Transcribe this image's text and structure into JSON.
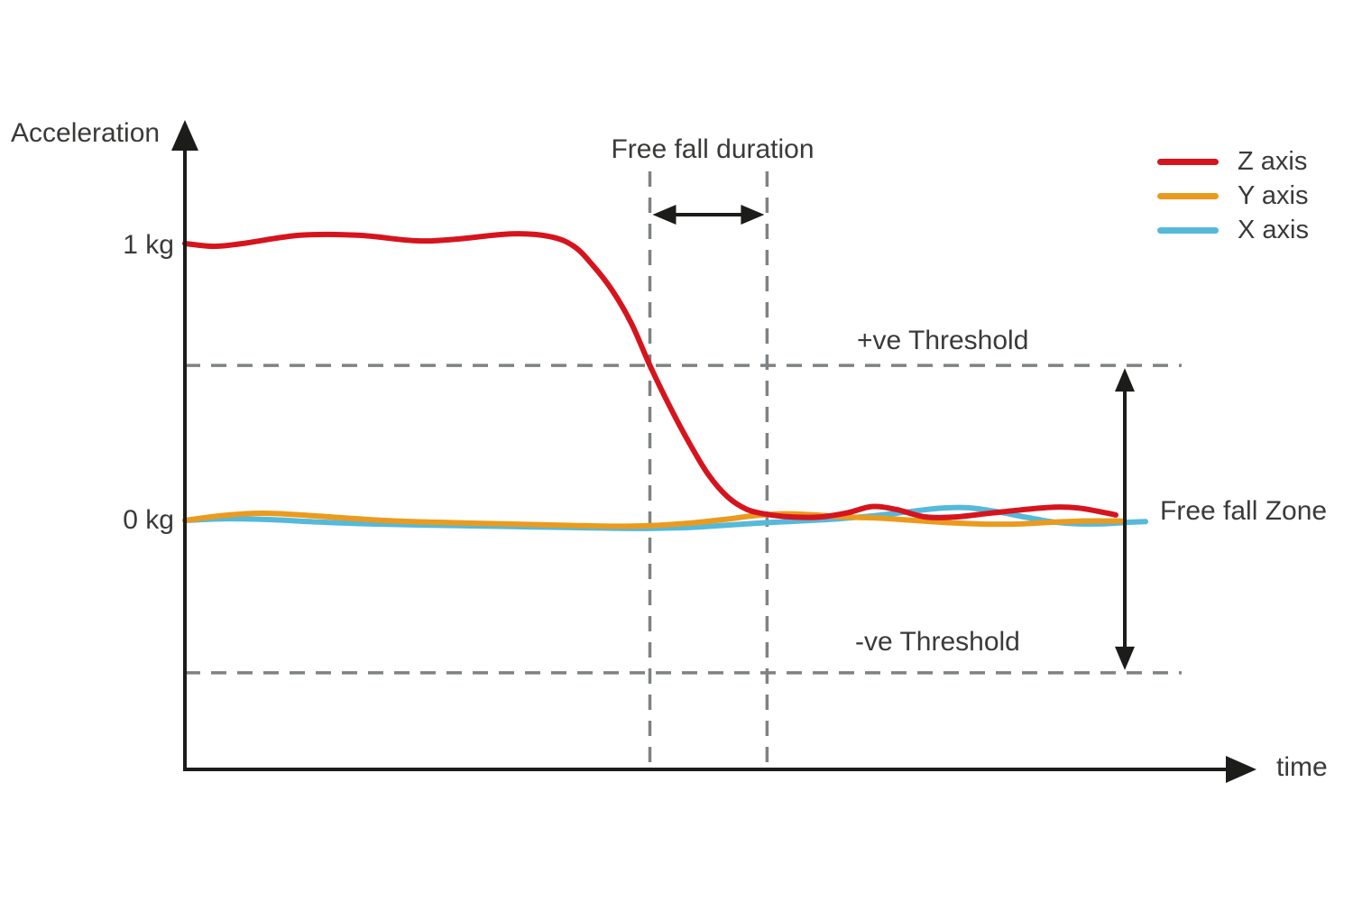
{
  "chart_data": {
    "type": "line",
    "title": "",
    "xlabel": "time",
    "ylabel": "Acceleration",
    "y_units": "kg",
    "xlim": [
      0,
      100
    ],
    "ylim": [
      -0.9,
      1.35
    ],
    "grid": false,
    "legend_position": "top-right",
    "yticks": [
      {
        "value": 1,
        "label": "1 kg"
      },
      {
        "value": 0,
        "label": "0 kg"
      }
    ],
    "thresholds": {
      "positive": 0.56,
      "negative": -0.55
    },
    "free_fall_window": {
      "t_start": 48.4,
      "t_end": 60.6
    },
    "annotations": {
      "free_fall_duration": "Free fall duration",
      "positive_threshold": "+ve Threshold",
      "negative_threshold": "-ve Threshold",
      "free_fall_zone": "Free fall Zone"
    },
    "series": [
      {
        "name": "Z axis",
        "color": "#d6141e",
        "points": [
          [
            0,
            1.0
          ],
          [
            3,
            0.99
          ],
          [
            6,
            1.0
          ],
          [
            12,
            1.03
          ],
          [
            18,
            1.03
          ],
          [
            24,
            1.01
          ],
          [
            28,
            1.015
          ],
          [
            34,
            1.035
          ],
          [
            38,
            1.025
          ],
          [
            40.5,
            0.99
          ],
          [
            42.5,
            0.92
          ],
          [
            44.5,
            0.83
          ],
          [
            46.5,
            0.71
          ],
          [
            48.4,
            0.56
          ],
          [
            50.5,
            0.41
          ],
          [
            52.5,
            0.28
          ],
          [
            54.5,
            0.165
          ],
          [
            56.5,
            0.085
          ],
          [
            58.5,
            0.04
          ],
          [
            60.6,
            0.022
          ],
          [
            63,
            0.013
          ],
          [
            66,
            0.012
          ],
          [
            69,
            0.028
          ],
          [
            71.5,
            0.05
          ],
          [
            74,
            0.04
          ],
          [
            77,
            0.013
          ],
          [
            80,
            0.012
          ],
          [
            83.5,
            0.025
          ],
          [
            87,
            0.038
          ],
          [
            90.5,
            0.048
          ],
          [
            93,
            0.045
          ],
          [
            95.5,
            0.03
          ],
          [
            96.9,
            0.02
          ]
        ]
      },
      {
        "name": "Y axis",
        "color": "#ea9b1e",
        "points": [
          [
            0,
            0.0
          ],
          [
            4,
            0.018
          ],
          [
            8,
            0.026
          ],
          [
            12,
            0.02
          ],
          [
            17,
            0.008
          ],
          [
            22,
            -0.002
          ],
          [
            28,
            -0.008
          ],
          [
            34,
            -0.013
          ],
          [
            40,
            -0.018
          ],
          [
            45,
            -0.021
          ],
          [
            49,
            -0.018
          ],
          [
            53,
            -0.008
          ],
          [
            56.5,
            0.005
          ],
          [
            59.5,
            0.018
          ],
          [
            62.5,
            0.024
          ],
          [
            65.5,
            0.02
          ],
          [
            69,
            0.012
          ],
          [
            72.5,
            0.008
          ],
          [
            76,
            0.0
          ],
          [
            79.5,
            -0.008
          ],
          [
            83,
            -0.013
          ],
          [
            86.5,
            -0.013
          ],
          [
            90,
            -0.007
          ],
          [
            93.5,
            -0.002
          ],
          [
            97.5,
            -0.002
          ]
        ]
      },
      {
        "name": "X axis",
        "color": "#55b9da",
        "points": [
          [
            0,
            0.0
          ],
          [
            4,
            0.006
          ],
          [
            9,
            0.003
          ],
          [
            14,
            -0.006
          ],
          [
            20,
            -0.013
          ],
          [
            27,
            -0.018
          ],
          [
            34,
            -0.022
          ],
          [
            41,
            -0.026
          ],
          [
            47,
            -0.029
          ],
          [
            52,
            -0.026
          ],
          [
            56,
            -0.018
          ],
          [
            60,
            -0.009
          ],
          [
            64,
            -0.002
          ],
          [
            68,
            0.006
          ],
          [
            72,
            0.018
          ],
          [
            75.5,
            0.032
          ],
          [
            78.5,
            0.044
          ],
          [
            81.5,
            0.046
          ],
          [
            84.5,
            0.032
          ],
          [
            87.5,
            0.012
          ],
          [
            90.5,
            -0.006
          ],
          [
            93,
            -0.012
          ],
          [
            95.5,
            -0.012
          ],
          [
            98,
            -0.007
          ],
          [
            100,
            -0.004
          ]
        ]
      }
    ]
  },
  "colors": {
    "axis": "#1c1c1b",
    "dashed_line": "#7f8284",
    "text": "#3a3a39",
    "background": "#ffffff"
  }
}
